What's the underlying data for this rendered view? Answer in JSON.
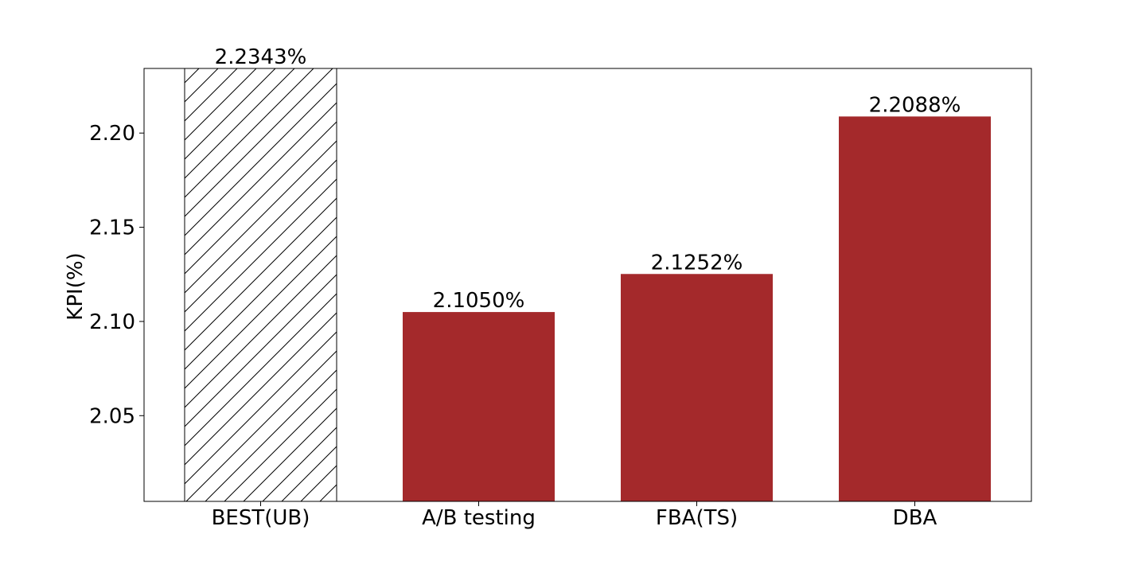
{
  "chart_data": {
    "type": "bar",
    "title": "",
    "xlabel": "",
    "ylabel": "KPI(%)",
    "categories": [
      "BEST(UB)",
      "A/B testing",
      "FBA(TS)",
      "DBA"
    ],
    "values": [
      2.2343,
      2.105,
      2.1252,
      2.2088
    ],
    "data_labels": [
      "2.2343%",
      "2.1050%",
      "2.1252%",
      "2.2088%"
    ],
    "hatched": [
      true,
      false,
      false,
      false
    ],
    "ylim": [
      2.0045,
      2.2343
    ],
    "yticks": [
      2.05,
      2.1,
      2.15,
      2.2
    ],
    "ytick_labels": [
      "2.05",
      "2.10",
      "2.15",
      "2.20"
    ],
    "grid": false,
    "colors": {
      "bar": "#a4292b",
      "hatch_bar_fill": "#ffffff",
      "hatch_line": "#000000",
      "frame": "#000000"
    }
  }
}
